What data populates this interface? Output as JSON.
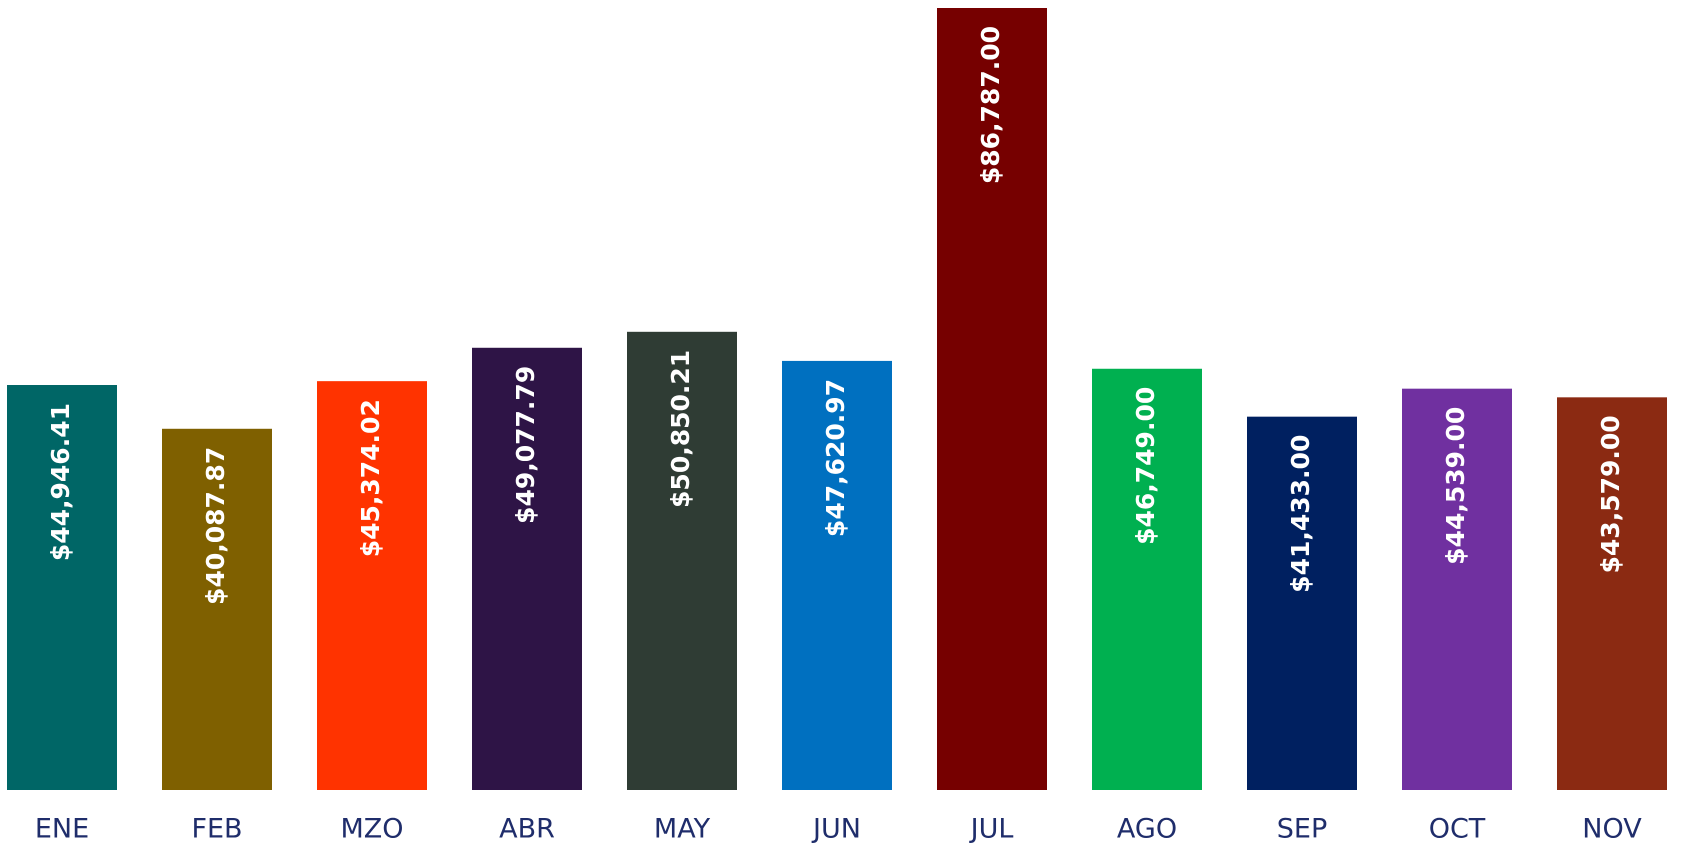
{
  "chart_data": {
    "type": "bar",
    "categories": [
      "ENE",
      "FEB",
      "MZO",
      "ABR",
      "MAY",
      "JUN",
      "JUL",
      "AGO",
      "SEP",
      "OCT",
      "NOV"
    ],
    "values": [
      44946.41,
      40087.87,
      45374.02,
      49077.79,
      50850.21,
      47620.97,
      86787.0,
      46749.0,
      41433.0,
      44539.0,
      43579.0
    ],
    "value_labels": [
      "$44,946.41",
      "$40,087.87",
      "$45,374.02",
      "$49,077.79",
      "$50,850.21",
      "$47,620.97",
      "$86,787.00",
      "$46,749.00",
      "$41,433.00",
      "$44,539.00",
      "$43,579.00"
    ],
    "colors": [
      "#006666",
      "#7f6000",
      "#ff3300",
      "#2e1446",
      "#2f3c34",
      "#0070c0",
      "#760000",
      "#00b050",
      "#002060",
      "#7030a0",
      "#8b2a12"
    ]
  }
}
